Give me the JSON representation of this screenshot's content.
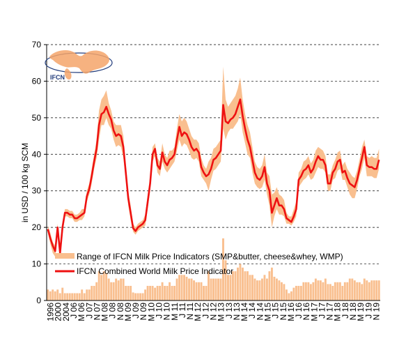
{
  "chart_data": {
    "type": "line",
    "title": "",
    "xlabel": "",
    "ylabel": "in USD / 100 kg SCM",
    "ylim": [
      0,
      70
    ],
    "yticks": [
      0,
      10,
      20,
      30,
      40,
      50,
      60,
      70
    ],
    "grid": "horizontal dashed",
    "legend_position": "bottom-left (inside plot)",
    "logo_text": "IFCN",
    "x_tick_labels": [
      "1996",
      "2000",
      "2004",
      "J 06",
      "M 06",
      "J 07",
      "N 07",
      "M 08",
      "J 08",
      "N 08",
      "M 09",
      "J 09",
      "N 09",
      "M 10",
      "J 10",
      "N 10",
      "M 11",
      "J 11",
      "N 11",
      "M 12",
      "J 12",
      "N 12",
      "M 13",
      "J 13",
      "N 13",
      "M 14",
      "J 14",
      "N 14",
      "M 15",
      "J 15",
      "N 15",
      "M 16",
      "J 16",
      "N 16",
      "M 17",
      "J 17",
      "N 17",
      "M 18",
      "J 18",
      "N 18",
      "M 19",
      "J 19",
      "N 19"
    ],
    "series": [
      {
        "name": "IFCN Combined World Milk Price Indicator",
        "color": "#ee1111",
        "values": [
          19.5,
          17,
          15,
          13.5,
          20,
          13,
          20,
          24,
          24,
          23.5,
          23.5,
          22.5,
          22.5,
          23,
          23.5,
          24,
          28.5,
          30.5,
          34,
          38,
          41.5,
          48,
          51,
          51.5,
          53,
          51,
          49.5,
          46.5,
          45,
          45.5,
          45,
          42,
          35,
          28,
          24,
          19.8,
          19,
          20,
          20.5,
          21,
          22,
          27,
          32,
          40,
          41.5,
          37,
          36,
          40.5,
          38,
          37,
          38.5,
          39,
          40,
          44,
          47.5,
          45,
          46,
          45.5,
          44,
          42,
          41,
          41.5,
          40.5,
          36.5,
          35,
          34,
          34.5,
          36,
          38.5,
          39,
          40,
          41,
          53.5,
          49,
          48.5,
          49.5,
          50,
          51,
          53,
          55,
          50.5,
          47,
          44,
          42,
          38.5,
          35,
          33.5,
          33,
          34,
          36.5,
          32,
          30,
          24,
          26,
          28,
          26,
          26,
          25,
          22.5,
          22,
          21.5,
          23,
          25,
          33,
          34,
          35.5,
          36,
          37,
          35,
          36,
          38,
          39.5,
          38.5,
          38.5,
          37,
          32,
          32,
          35,
          36,
          38,
          38.5,
          35,
          35.5,
          33.5,
          32,
          31.5,
          31,
          33,
          36,
          39,
          42,
          37,
          36.5,
          36.5,
          36,
          36,
          38.5
        ]
      },
      {
        "name": "Range of IFCN Milk Price Indicators (SMP&butter, cheese&whey, WMP)",
        "color": "#f9bf8f",
        "low": [
          18.5,
          15.5,
          13,
          12,
          18,
          12,
          18,
          23,
          23,
          22.5,
          22.5,
          21.5,
          21.5,
          22,
          22,
          23,
          27,
          29,
          32,
          36,
          39,
          44,
          48,
          48,
          50,
          48,
          47,
          44,
          42,
          42.5,
          42,
          39,
          33,
          26,
          22,
          18.8,
          18,
          19,
          19.5,
          20,
          20.5,
          25,
          30,
          38,
          39.5,
          35,
          34,
          38,
          36,
          35,
          36,
          37,
          38,
          41,
          44,
          42,
          43,
          42.5,
          41,
          39,
          38.5,
          39,
          38,
          34,
          33,
          32,
          30,
          33,
          35.5,
          36,
          37,
          38,
          47,
          44,
          46,
          47,
          47,
          48,
          49,
          51,
          46,
          43,
          40,
          39,
          35,
          32,
          31,
          30.5,
          31,
          33,
          29,
          26,
          20,
          23,
          25,
          23.5,
          23.5,
          23,
          21,
          21,
          20.5,
          21.5,
          23,
          31,
          32,
          33,
          33.5,
          34.5,
          33,
          33.5,
          35,
          36.5,
          36,
          36,
          35,
          30,
          30,
          33,
          33.5,
          35.5,
          36,
          33,
          33,
          31,
          29,
          28,
          28,
          30.5,
          34,
          36,
          39,
          34,
          34,
          34,
          33.5,
          33.5,
          36
        ],
        "high": [
          20.5,
          18.5,
          16,
          15,
          21,
          14,
          21.5,
          25,
          25,
          24.5,
          24.5,
          23.5,
          23.5,
          24,
          25,
          25,
          30,
          32,
          36,
          40,
          44,
          52,
          55,
          56,
          57.5,
          54,
          52,
          49,
          48,
          48,
          48,
          45,
          37,
          30,
          26,
          21,
          20,
          21,
          21.5,
          22,
          23.5,
          29,
          34,
          42,
          43,
          39,
          38,
          43,
          40,
          39,
          41,
          41,
          42,
          47,
          51,
          49,
          50,
          49,
          47,
          45,
          44,
          44,
          43,
          39,
          37,
          36,
          38,
          39,
          41.5,
          42,
          43,
          44,
          64,
          55,
          53,
          54,
          55,
          56,
          58,
          61,
          55,
          51,
          48,
          46,
          42,
          38,
          36.5,
          36,
          37,
          40,
          35,
          34,
          29,
          29.5,
          31,
          29,
          28.5,
          27.5,
          24,
          23,
          23,
          25,
          27,
          35,
          36,
          38,
          38.5,
          39.5,
          37.5,
          38.5,
          41,
          42,
          41.5,
          41,
          39.5,
          34.5,
          34.5,
          37,
          38.5,
          40.5,
          41,
          37,
          38,
          36,
          35,
          34,
          33.5,
          35.5,
          38.5,
          42,
          44,
          39.5,
          39,
          39.5,
          39,
          39,
          41.5
        ],
        "range_bar_values": [
          3,
          2.5,
          3,
          2.5,
          3,
          2,
          3.5,
          2,
          2,
          2,
          2,
          2,
          2,
          2,
          3,
          2,
          3,
          3,
          4,
          4,
          5,
          8,
          7,
          8,
          7.5,
          6,
          5,
          5,
          6,
          5.5,
          6,
          6,
          4,
          4,
          4,
          2.2,
          2,
          2,
          2,
          2,
          3,
          4,
          4,
          4,
          3.5,
          4,
          4,
          5,
          4,
          4,
          5,
          4,
          4,
          6,
          7,
          7,
          7,
          6.5,
          6,
          6,
          5.5,
          5,
          5,
          5,
          4,
          4,
          8,
          6,
          6,
          6,
          6,
          6,
          17,
          11,
          7,
          7,
          8,
          8,
          9,
          10,
          9,
          8,
          8,
          7,
          7,
          6,
          5.5,
          5.5,
          6,
          7,
          6,
          8,
          9,
          6.5,
          6,
          5.5,
          5,
          4.5,
          3,
          2,
          2.5,
          3.5,
          4,
          4,
          4,
          5,
          5,
          5,
          4.5,
          5,
          6,
          5.5,
          5.5,
          5,
          6,
          4.5,
          4.5,
          4,
          5,
          5,
          5,
          4,
          5,
          5,
          6,
          6,
          5.5,
          5,
          5,
          4.5,
          6,
          5.5,
          5,
          5.5,
          5.5,
          5.5,
          5.5
        ]
      }
    ]
  }
}
